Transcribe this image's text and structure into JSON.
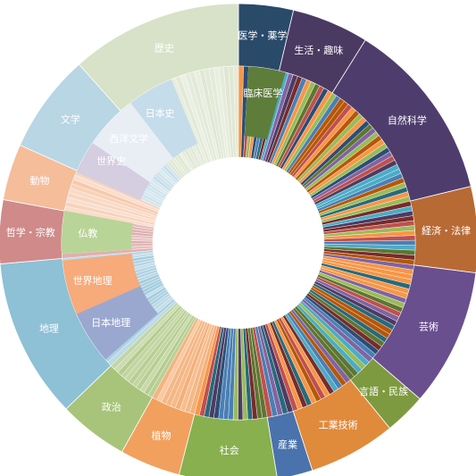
{
  "chart_data": {
    "type": "sunburst",
    "title": "",
    "outer_ring": [
      {
        "label": "医学・薬学",
        "value": 3.7,
        "color": "#2a4a6a"
      },
      {
        "label": "生活・趣味",
        "value": 5.2,
        "color": "#4a3a62"
      },
      {
        "label": "自然科学",
        "value": 12.3,
        "color": "#4e3d6c"
      },
      {
        "label": "経済・法律",
        "value": 5.8,
        "color": "#b86a35"
      },
      {
        "label": "芸術",
        "value": 9.3,
        "color": "#6a4f8f"
      },
      {
        "label": "言語・民族",
        "value": 2.8,
        "color": "#7e9a40"
      },
      {
        "label": "工業技術",
        "value": 5.9,
        "color": "#e08a3c"
      },
      {
        "label": "産業",
        "value": 2.4,
        "color": "#4a72ad"
      },
      {
        "label": "社会",
        "value": 6.6,
        "color": "#88b04e"
      },
      {
        "label": "植物",
        "value": 4.1,
        "color": "#f2a05e"
      },
      {
        "label": "政治",
        "value": 4.7,
        "color": "#a7c47a"
      },
      {
        "label": "地理",
        "value": 10.8,
        "color": "#8ec0d6"
      },
      {
        "label": "哲学・宗教",
        "value": 4.3,
        "color": "#d08a8a"
      },
      {
        "label": "動物",
        "value": 3.8,
        "color": "#f5bd9a"
      },
      {
        "label": "文学",
        "value": 6.7,
        "color": "#b8d6e4"
      },
      {
        "label": "歴史",
        "value": 11.6,
        "color": "#d8e2c8"
      }
    ],
    "inner_labels": [
      "臨床医学",
      "日本史",
      "世界史",
      "西洋文学",
      "仏教",
      "日本地理",
      "世界地理"
    ]
  },
  "colors": {
    "inner_palette": [
      "#4a7fb5",
      "#c0504d",
      "#9bbb59",
      "#8064a2",
      "#4bacc6",
      "#f79646",
      "#2c4d75",
      "#772c2a",
      "#5f7530",
      "#4d3b62",
      "#276a7c",
      "#b65708"
    ]
  }
}
